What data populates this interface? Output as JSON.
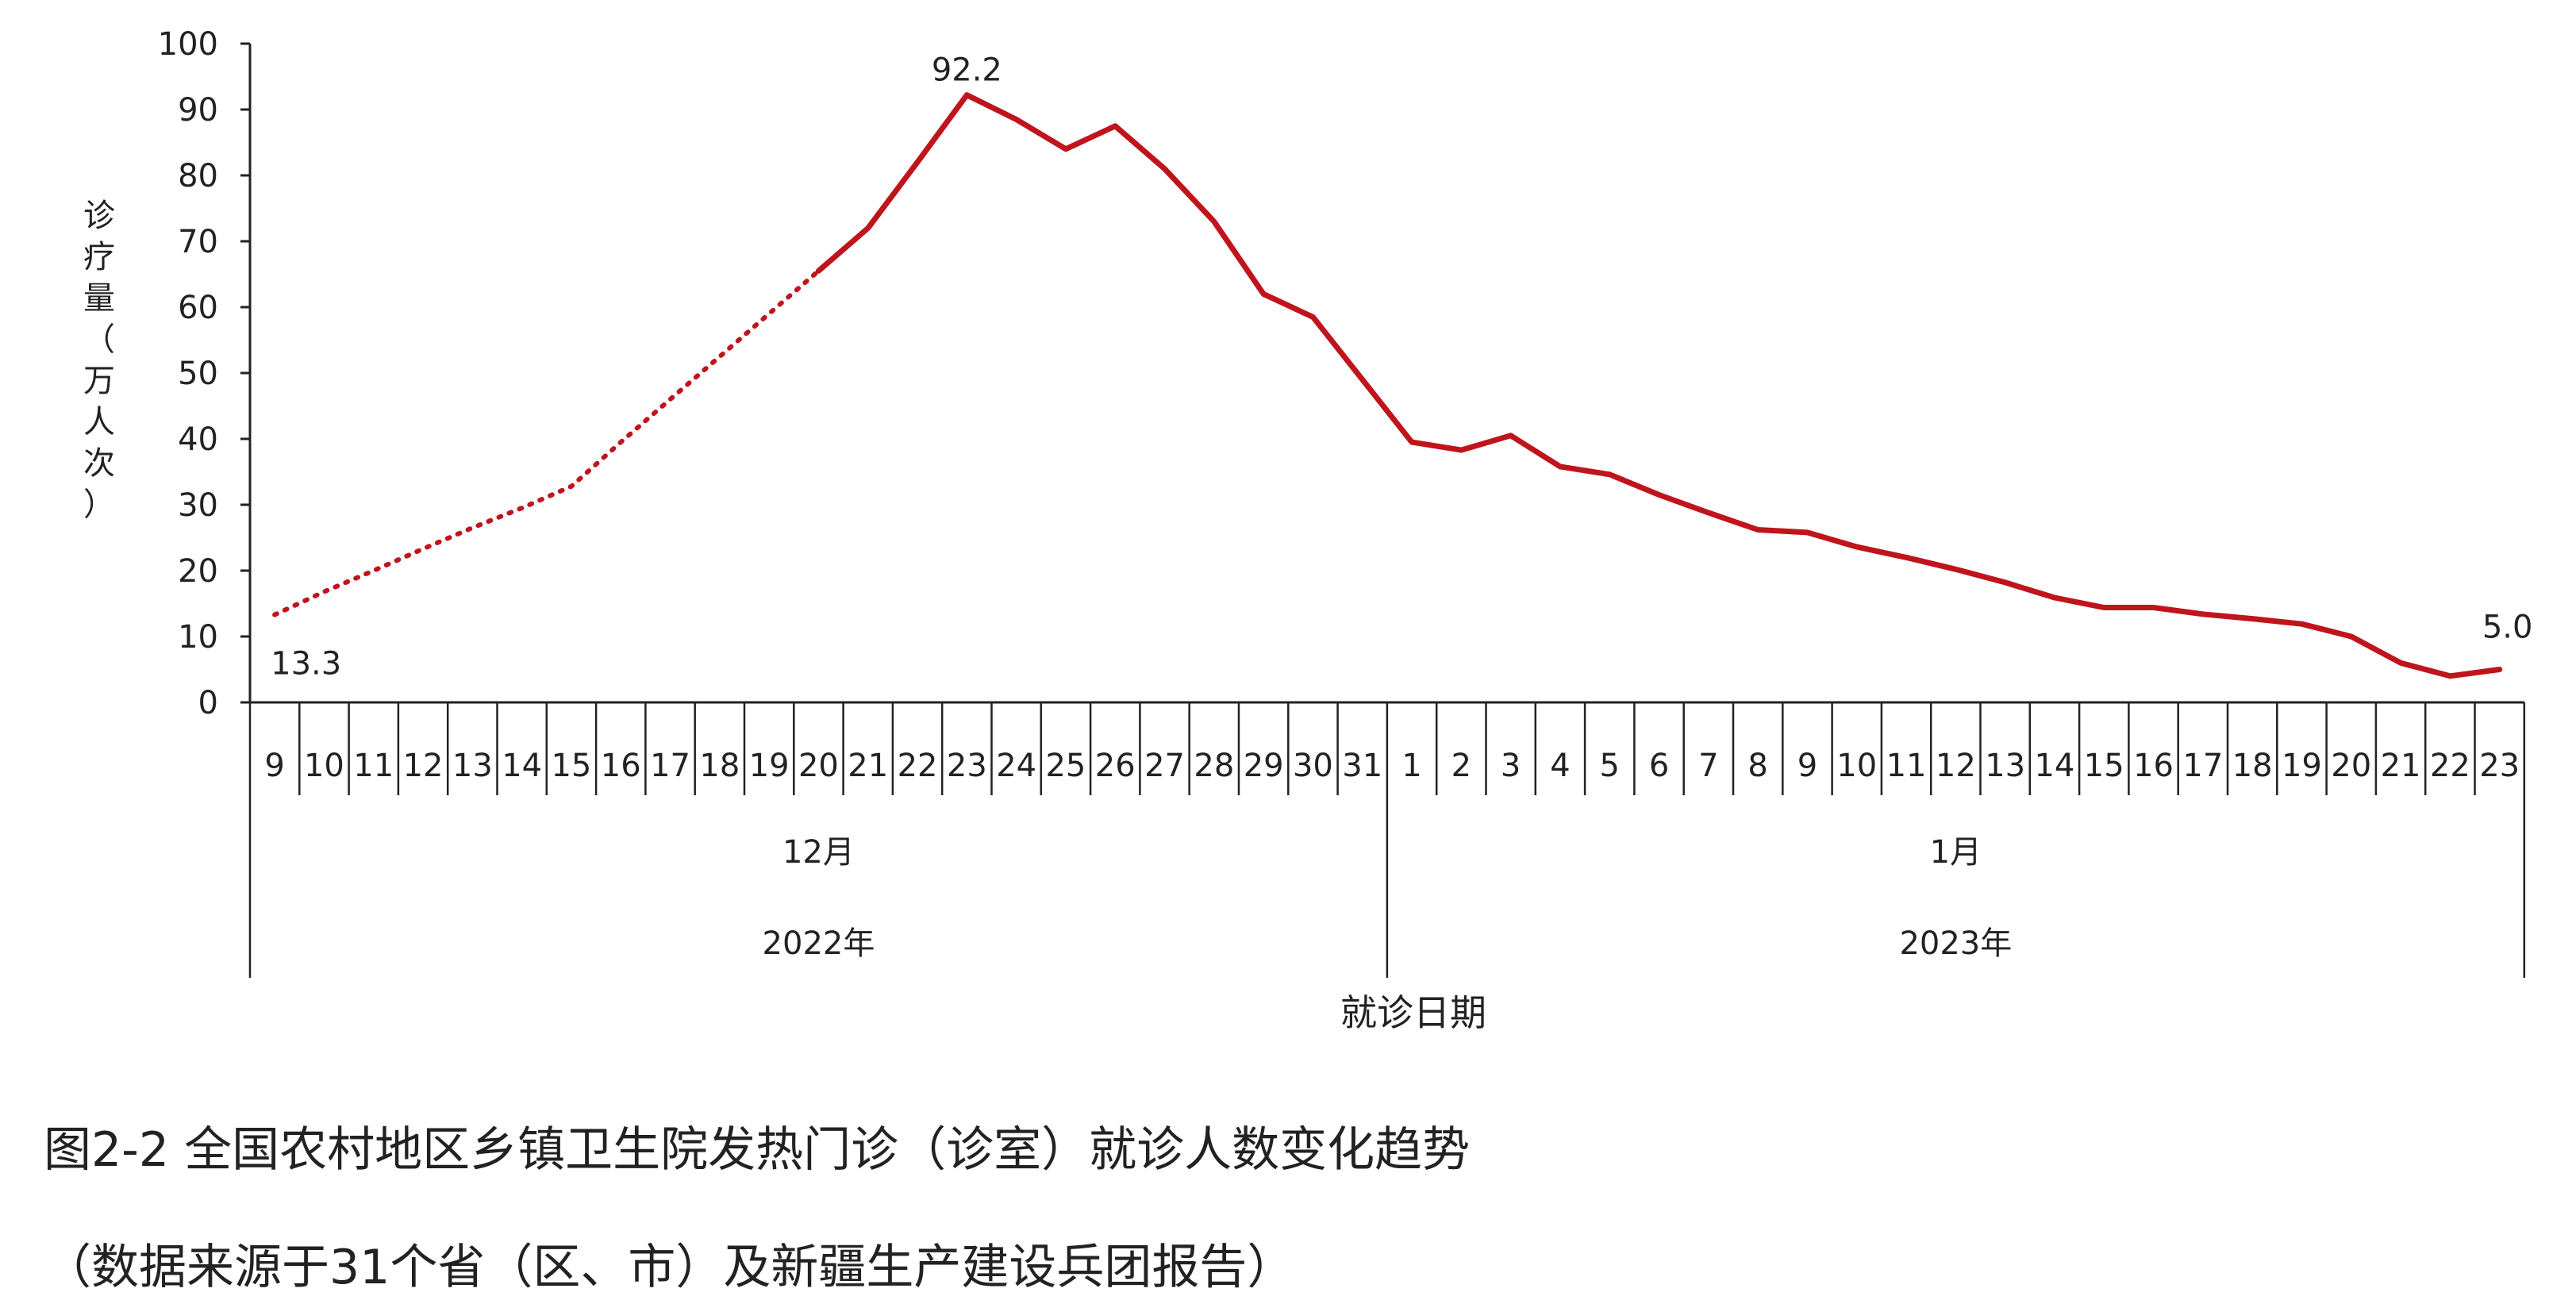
{
  "chart_data": {
    "type": "line",
    "ylabel": "诊疗量（万人次）",
    "xlabel": "就诊日期",
    "ylim": [
      0,
      100
    ],
    "yticks": [
      0,
      10,
      20,
      30,
      40,
      50,
      60,
      70,
      80,
      90,
      100
    ],
    "grid": false,
    "legend": "none",
    "line_color": "#c0141c",
    "x": [
      "9",
      "10",
      "11",
      "12",
      "13",
      "14",
      "15",
      "16",
      "17",
      "18",
      "19",
      "20",
      "21",
      "22",
      "23",
      "24",
      "25",
      "26",
      "27",
      "28",
      "29",
      "30",
      "31",
      "1",
      "2",
      "3",
      "4",
      "5",
      "6",
      "7",
      "8",
      "9",
      "10",
      "11",
      "12",
      "13",
      "14",
      "15",
      "16",
      "17",
      "18",
      "19",
      "20",
      "21",
      "22",
      "23"
    ],
    "months": [
      {
        "label": "12月",
        "start": 0,
        "end": 22
      },
      {
        "label": "1月",
        "start": 23,
        "end": 45
      }
    ],
    "years": [
      {
        "label": "2022年",
        "start": 0,
        "end": 22
      },
      {
        "label": "2023年",
        "start": 23,
        "end": 45
      }
    ],
    "values": [
      13.3,
      16.8,
      20.0,
      23.3,
      26.5,
      29.5,
      32.8,
      39.5,
      46.0,
      52.5,
      59.0,
      65.5,
      72.0,
      82.0,
      92.2,
      88.5,
      84.0,
      87.5,
      81.0,
      73.0,
      62.0,
      58.5,
      49.0,
      39.5,
      38.3,
      40.5,
      35.8,
      34.6,
      31.5,
      28.8,
      26.2,
      25.8,
      23.6,
      22.0,
      20.2,
      18.2,
      15.9,
      14.4,
      14.4,
      13.4,
      12.7,
      11.9,
      10.0,
      6.0,
      4.0,
      5.0
    ],
    "dotted_until_index": 11,
    "annotations": [
      {
        "index": 0,
        "text": "13.3"
      },
      {
        "index": 14,
        "text": "92.2"
      },
      {
        "index": 45,
        "text": "5.0"
      }
    ]
  },
  "caption": {
    "line1": "图2-2  全国农村地区乡镇卫生院发热门诊（诊室）就诊人数变化趋势",
    "line2": "（数据来源于31个省（区、市）及新疆生产建设兵团报告）"
  }
}
